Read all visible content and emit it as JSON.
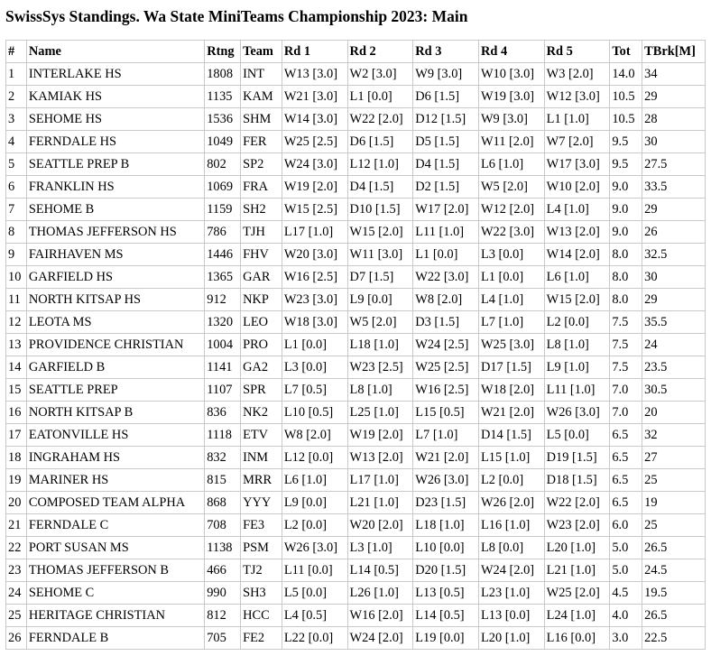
{
  "title": "SwissSys Standings. Wa State MiniTeams Championship 2023: Main",
  "table": {
    "headers": [
      "#",
      "Name",
      "Rtng",
      "Team",
      "Rd 1",
      "Rd 2",
      "Rd 3",
      "Rd 4",
      "Rd 5",
      "Tot",
      "TBrk[M]"
    ],
    "rows": [
      [
        "1",
        "INTERLAKE HS",
        "1808",
        "INT",
        "W13 [3.0]",
        "W2 [3.0]",
        "W9 [3.0]",
        "W10 [3.0]",
        "W3 [2.0]",
        "14.0",
        "34"
      ],
      [
        "2",
        "KAMIAK HS",
        "1135",
        "KAM",
        "W21 [3.0]",
        "L1 [0.0]",
        "D6 [1.5]",
        "W19 [3.0]",
        "W12 [3.0]",
        "10.5",
        "29"
      ],
      [
        "3",
        "SEHOME HS",
        "1536",
        "SHM",
        "W14 [3.0]",
        "W22 [2.0]",
        "D12 [1.5]",
        "W9 [3.0]",
        "L1 [1.0]",
        "10.5",
        "28"
      ],
      [
        "4",
        "FERNDALE HS",
        "1049",
        "FER",
        "W25 [2.5]",
        "D6 [1.5]",
        "D5 [1.5]",
        "W11 [2.0]",
        "W7 [2.0]",
        "9.5",
        "30"
      ],
      [
        "5",
        "SEATTLE PREP B",
        "802",
        "SP2",
        "W24 [3.0]",
        "L12 [1.0]",
        "D4 [1.5]",
        "L6 [1.0]",
        "W17 [3.0]",
        "9.5",
        "27.5"
      ],
      [
        "6",
        "FRANKLIN HS",
        "1069",
        "FRA",
        "W19 [2.0]",
        "D4 [1.5]",
        "D2 [1.5]",
        "W5 [2.0]",
        "W10 [2.0]",
        "9.0",
        "33.5"
      ],
      [
        "7",
        "SEHOME B",
        "1159",
        "SH2",
        "W15 [2.5]",
        "D10 [1.5]",
        "W17 [2.0]",
        "W12 [2.0]",
        "L4 [1.0]",
        "9.0",
        "29"
      ],
      [
        "8",
        "THOMAS JEFFERSON HS",
        "786",
        "TJH",
        "L17 [1.0]",
        "W15 [2.0]",
        "L11 [1.0]",
        "W22 [3.0]",
        "W13 [2.0]",
        "9.0",
        "26"
      ],
      [
        "9",
        "FAIRHAVEN MS",
        "1446",
        "FHV",
        "W20 [3.0]",
        "W11 [3.0]",
        "L1 [0.0]",
        "L3 [0.0]",
        "W14 [2.0]",
        "8.0",
        "32.5"
      ],
      [
        "10",
        "GARFIELD HS",
        "1365",
        "GAR",
        "W16 [2.5]",
        "D7 [1.5]",
        "W22 [3.0]",
        "L1 [0.0]",
        "L6 [1.0]",
        "8.0",
        "30"
      ],
      [
        "11",
        "NORTH KITSAP HS",
        "912",
        "NKP",
        "W23 [3.0]",
        "L9 [0.0]",
        "W8 [2.0]",
        "L4 [1.0]",
        "W15 [2.0]",
        "8.0",
        "29"
      ],
      [
        "12",
        "LEOTA MS",
        "1320",
        "LEO",
        "W18 [3.0]",
        "W5 [2.0]",
        "D3 [1.5]",
        "L7 [1.0]",
        "L2 [0.0]",
        "7.5",
        "35.5"
      ],
      [
        "13",
        "PROVIDENCE CHRISTIAN",
        "1004",
        "PRO",
        "L1 [0.0]",
        "L18 [1.0]",
        "W24 [2.5]",
        "W25 [3.0]",
        "L8 [1.0]",
        "7.5",
        "24"
      ],
      [
        "14",
        "GARFIELD B",
        "1141",
        "GA2",
        "L3 [0.0]",
        "W23 [2.5]",
        "W25 [2.5]",
        "D17 [1.5]",
        "L9 [1.0]",
        "7.5",
        "23.5"
      ],
      [
        "15",
        "SEATTLE PREP",
        "1107",
        "SPR",
        "L7 [0.5]",
        "L8 [1.0]",
        "W16 [2.5]",
        "W18 [2.0]",
        "L11 [1.0]",
        "7.0",
        "30.5"
      ],
      [
        "16",
        "NORTH KITSAP B",
        "836",
        "NK2",
        "L10 [0.5]",
        "L25 [1.0]",
        "L15 [0.5]",
        "W21 [2.0]",
        "W26 [3.0]",
        "7.0",
        "20"
      ],
      [
        "17",
        "EATONVILLE HS",
        "1118",
        "ETV",
        "W8 [2.0]",
        "W19 [2.0]",
        "L7 [1.0]",
        "D14 [1.5]",
        "L5 [0.0]",
        "6.5",
        "32"
      ],
      [
        "18",
        "INGRAHAM HS",
        "832",
        "INM",
        "L12 [0.0]",
        "W13 [2.0]",
        "W21 [2.0]",
        "L15 [1.0]",
        "D19 [1.5]",
        "6.5",
        "27"
      ],
      [
        "19",
        "MARINER HS",
        "815",
        "MRR",
        "L6 [1.0]",
        "L17 [1.0]",
        "W26 [3.0]",
        "L2 [0.0]",
        "D18 [1.5]",
        "6.5",
        "25"
      ],
      [
        "20",
        "COMPOSED TEAM ALPHA",
        "868",
        "YYY",
        "L9 [0.0]",
        "L21 [1.0]",
        "D23 [1.5]",
        "W26 [2.0]",
        "W22 [2.0]",
        "6.5",
        "19"
      ],
      [
        "21",
        "FERNDALE C",
        "708",
        "FE3",
        "L2 [0.0]",
        "W20 [2.0]",
        "L18 [1.0]",
        "L16 [1.0]",
        "W23 [2.0]",
        "6.0",
        "25"
      ],
      [
        "22",
        "PORT SUSAN MS",
        "1138",
        "PSM",
        "W26 [3.0]",
        "L3 [1.0]",
        "L10 [0.0]",
        "L8 [0.0]",
        "L20 [1.0]",
        "5.0",
        "26.5"
      ],
      [
        "23",
        "THOMAS JEFFERSON B",
        "466",
        "TJ2",
        "L11 [0.0]",
        "L14 [0.5]",
        "D20 [1.5]",
        "W24 [2.0]",
        "L21 [1.0]",
        "5.0",
        "24.5"
      ],
      [
        "24",
        "SEHOME C",
        "990",
        "SH3",
        "L5 [0.0]",
        "L26 [1.0]",
        "L13 [0.5]",
        "L23 [1.0]",
        "W25 [2.0]",
        "4.5",
        "19.5"
      ],
      [
        "25",
        "HERITAGE CHRISTIAN",
        "812",
        "HCC",
        "L4 [0.5]",
        "W16 [2.0]",
        "L14 [0.5]",
        "L13 [0.0]",
        "L24 [1.0]",
        "4.0",
        "26.5"
      ],
      [
        "26",
        "FERNDALE B",
        "705",
        "FE2",
        "L22 [0.0]",
        "W24 [2.0]",
        "L19 [0.0]",
        "L20 [1.0]",
        "L16 [0.0]",
        "3.0",
        "22.5"
      ]
    ]
  }
}
